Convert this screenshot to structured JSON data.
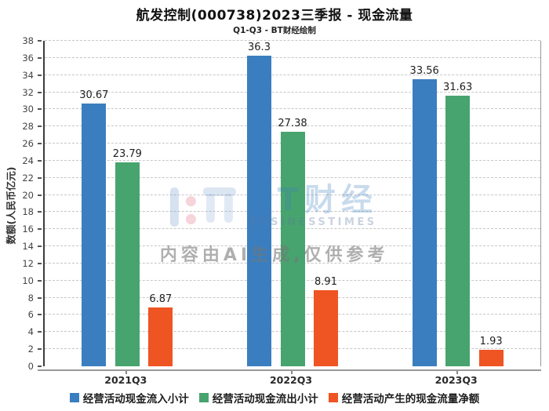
{
  "page": {
    "title": "航发控制(000738)2023三季报 - 现金流量",
    "subtitle": "Q1-Q3 - BT财经绘制"
  },
  "chart_data": {
    "type": "bar",
    "title": "航发控制(000738)2023三季报 - 现金流量",
    "subtitle": "Q1-Q3 - BT财经绘制",
    "categories": [
      "2021Q3",
      "2022Q3",
      "2023Q3"
    ],
    "series": [
      {
        "name": "经营活动现金流入小计",
        "color": "#3a7ebf",
        "values": [
          30.67,
          36.3,
          33.56
        ]
      },
      {
        "name": "经营活动现金流出小计",
        "color": "#47a46e",
        "values": [
          23.79,
          27.38,
          31.63
        ]
      },
      {
        "name": "经营活动产生的现金流量净额",
        "color": "#ef5423",
        "values": [
          6.87,
          8.91,
          1.93
        ]
      }
    ],
    "xlabel": "",
    "ylabel": "数额(人民币亿元)",
    "ylim": [
      0,
      38
    ],
    "ytick_step": 2,
    "grid": "horizontal-dashed",
    "legend_position": "bottom"
  },
  "watermark": {
    "logo_text": "BT财经",
    "logo_subtext": "BUSINESSTIMES",
    "note": "内容由AI生成,仅供参考"
  }
}
